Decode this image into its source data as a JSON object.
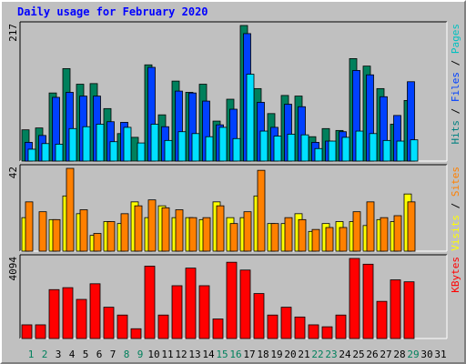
{
  "title": "Daily usage for February 2020",
  "chart_data": {
    "type": "bar",
    "days": [
      "1",
      "2",
      "3",
      "4",
      "5",
      "6",
      "7",
      "8",
      "9",
      "10",
      "11",
      "12",
      "13",
      "14",
      "15",
      "16",
      "17",
      "18",
      "19",
      "20",
      "21",
      "22",
      "23",
      "24",
      "25",
      "26",
      "27",
      "28",
      "29",
      "30",
      "31"
    ],
    "weekend_days": [
      "1",
      "2",
      "8",
      "9",
      "15",
      "16",
      "22",
      "23",
      "29"
    ],
    "panels": [
      {
        "name": "hits_files_pages",
        "ymax_label": "217",
        "ymax": 217,
        "ylabels": [
          {
            "text": "Pages",
            "color": "#00c0c0"
          },
          {
            "text": "Files",
            "color": "#0040ff"
          },
          {
            "text": "Hits",
            "color": "#008080"
          }
        ],
        "series": [
          {
            "name": "Hits",
            "color": "#00805c",
            "values": [
              50,
              53,
              109,
              148,
              123,
              124,
              84,
              44,
              38,
              154,
              74,
              128,
              110,
              123,
              64,
              99,
              217,
              116,
              76,
              105,
              104,
              39,
              52,
              49,
              164,
              152,
              116,
              59,
              97,
              0,
              0
            ]
          },
          {
            "name": "Files",
            "color": "#0040ff",
            "values": [
              30,
              41,
              102,
              110,
              104,
              104,
              63,
              62,
              0,
              150,
              55,
              112,
              109,
              96,
              58,
              83,
              204,
              94,
              54,
              91,
              87,
              30,
              32,
              47,
              145,
              138,
              103,
              73,
              127,
              0,
              0
            ]
          },
          {
            "name": "Pages",
            "color": "#00e0ff",
            "values": [
              19,
              28,
              27,
              52,
              55,
              59,
              31,
              54,
              29,
              59,
              33,
              47,
              44,
              39,
              54,
              36,
              139,
              48,
              40,
              43,
              42,
              20,
              32,
              38,
              48,
              44,
              33,
              32,
              34,
              0,
              0
            ]
          }
        ]
      },
      {
        "name": "visits_sites",
        "ymax_label": "42",
        "ymax": 42,
        "ylabels": [
          {
            "text": "Sites",
            "color": "#ff8000"
          },
          {
            "text": "Visits",
            "color": "#ffff00"
          }
        ],
        "series": [
          {
            "name": "Visits",
            "color": "#ffff00",
            "values": [
              17,
              0,
              16,
              28,
              19,
              8,
              15,
              14,
              25,
              17,
              23,
              17,
              17,
              16,
              25,
              17,
              17,
              28,
              14,
              14,
              19,
              10,
              14,
              15,
              15,
              13,
              16,
              15,
              29,
              0,
              0
            ]
          },
          {
            "name": "Sites",
            "color": "#ff8000",
            "values": [
              25,
              20,
              16,
              42,
              21,
              9,
              15,
              19,
              23,
              26,
              22,
              21,
              17,
              17,
              23,
              14,
              20,
              41,
              14,
              17,
              16,
              11,
              12,
              12,
              20,
              25,
              17,
              18,
              25,
              0,
              0
            ]
          }
        ]
      },
      {
        "name": "kbytes",
        "ymax_label": "4094",
        "ymax": 4094,
        "ylabels": [
          {
            "text": "KBytes",
            "color": "#ff0000"
          }
        ],
        "series": [
          {
            "name": "KBytes",
            "color": "#ff0000",
            "values": [
              700,
              700,
              2500,
              2600,
              2000,
              2800,
              1600,
              1200,
              500,
              3700,
              1200,
              2700,
              3600,
              2700,
              1000,
              3900,
              3500,
              2300,
              1200,
              1600,
              1100,
              700,
              600,
              1200,
              4094,
              3800,
              1900,
              3000,
              2900,
              0,
              0
            ]
          }
        ]
      }
    ]
  }
}
